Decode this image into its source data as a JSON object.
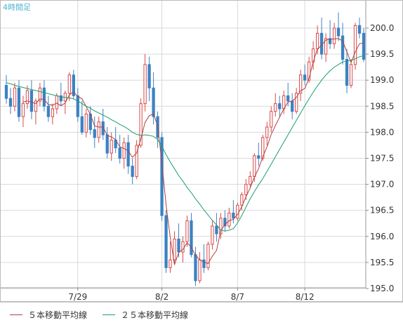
{
  "timeframe_label": "4時間足",
  "colors": {
    "up_candle": "#d94a4a",
    "down_candle": "#3b82c4",
    "ma5": "#b04040",
    "ma25": "#1a9e6e",
    "grid": "#d9d9d9"
  },
  "legend": {
    "ma5_label": "５本移動平均線",
    "ma25_label": "２５本移動平均線"
  },
  "chart_data": {
    "type": "candlestick",
    "title": "",
    "xlabel": "",
    "ylabel": "",
    "ylim": [
      194.85,
      200.5
    ],
    "y_ticks": [
      "195.0",
      "195.5",
      "196.0",
      "196.5",
      "197.0",
      "197.5",
      "198.0",
      "198.5",
      "199.0",
      "199.5",
      "200.0"
    ],
    "x_ticks": [
      {
        "index": 17,
        "label": "7/29"
      },
      {
        "index": 37,
        "label": "8/2"
      },
      {
        "index": 55,
        "label": "8/7"
      },
      {
        "index": 71,
        "label": "8/12"
      }
    ],
    "ohlc": [
      [
        198.9,
        199.1,
        198.55,
        198.65
      ],
      [
        198.65,
        198.85,
        198.35,
        198.5
      ],
      [
        198.5,
        198.95,
        198.4,
        198.85
      ],
      [
        198.85,
        199.0,
        198.2,
        198.3
      ],
      [
        198.3,
        198.7,
        198.1,
        198.55
      ],
      [
        198.55,
        198.9,
        198.45,
        198.8
      ],
      [
        198.8,
        199.0,
        198.25,
        198.4
      ],
      [
        198.4,
        198.65,
        198.15,
        198.6
      ],
      [
        198.6,
        198.95,
        198.5,
        198.85
      ],
      [
        198.85,
        199.0,
        198.4,
        198.5
      ],
      [
        198.5,
        198.7,
        198.2,
        198.3
      ],
      [
        198.3,
        198.55,
        198.15,
        198.45
      ],
      [
        198.45,
        198.75,
        198.35,
        198.7
      ],
      [
        198.7,
        198.95,
        198.5,
        198.6
      ],
      [
        198.6,
        198.8,
        198.35,
        198.75
      ],
      [
        198.75,
        199.15,
        198.6,
        199.1
      ],
      [
        199.1,
        199.2,
        198.65,
        198.7
      ],
      [
        198.7,
        198.85,
        198.2,
        198.3
      ],
      [
        198.3,
        198.6,
        197.95,
        198.0
      ],
      [
        198.0,
        198.45,
        197.9,
        198.35
      ],
      [
        198.35,
        198.5,
        197.95,
        198.05
      ],
      [
        198.05,
        198.3,
        197.7,
        197.9
      ],
      [
        197.9,
        198.3,
        197.8,
        198.2
      ],
      [
        198.2,
        198.45,
        197.85,
        197.95
      ],
      [
        197.95,
        198.1,
        197.5,
        197.6
      ],
      [
        197.6,
        198.0,
        197.45,
        197.85
      ],
      [
        197.85,
        198.1,
        197.6,
        197.7
      ],
      [
        197.7,
        197.95,
        197.4,
        197.5
      ],
      [
        197.5,
        197.9,
        197.3,
        197.8
      ],
      [
        197.8,
        197.95,
        197.2,
        197.35
      ],
      [
        197.35,
        197.5,
        197.0,
        197.15
      ],
      [
        197.15,
        197.85,
        197.1,
        197.75
      ],
      [
        197.75,
        198.65,
        197.7,
        198.55
      ],
      [
        198.55,
        199.5,
        198.4,
        199.3
      ],
      [
        199.3,
        199.45,
        198.6,
        198.85
      ],
      [
        198.85,
        199.15,
        198.15,
        198.3
      ],
      [
        198.3,
        198.4,
        197.7,
        197.9
      ],
      [
        197.9,
        198.0,
        196.3,
        196.4
      ],
      [
        196.4,
        196.5,
        195.3,
        195.4
      ],
      [
        195.4,
        195.9,
        195.3,
        195.55
      ],
      [
        195.55,
        196.1,
        195.45,
        195.95
      ],
      [
        195.95,
        196.25,
        195.6,
        195.7
      ],
      [
        195.7,
        196.0,
        195.5,
        195.9
      ],
      [
        195.9,
        196.4,
        195.8,
        196.3
      ],
      [
        196.3,
        196.45,
        195.6,
        195.65
      ],
      [
        195.65,
        195.8,
        195.05,
        195.15
      ],
      [
        195.15,
        195.7,
        195.1,
        195.55
      ],
      [
        195.55,
        195.85,
        195.3,
        195.4
      ],
      [
        195.4,
        195.9,
        195.35,
        195.85
      ],
      [
        195.85,
        196.3,
        195.75,
        196.2
      ],
      [
        196.2,
        196.45,
        195.9,
        196.05
      ],
      [
        196.05,
        196.45,
        195.95,
        196.35
      ],
      [
        196.35,
        196.5,
        196.1,
        196.2
      ],
      [
        196.2,
        196.55,
        196.15,
        196.45
      ],
      [
        196.45,
        196.7,
        196.25,
        196.35
      ],
      [
        196.35,
        196.65,
        196.3,
        196.6
      ],
      [
        196.6,
        196.85,
        196.5,
        196.8
      ],
      [
        196.8,
        197.1,
        196.7,
        197.0
      ],
      [
        197.0,
        197.25,
        196.95,
        197.15
      ],
      [
        197.15,
        197.6,
        197.05,
        197.55
      ],
      [
        197.55,
        197.8,
        197.35,
        197.5
      ],
      [
        197.5,
        197.95,
        197.45,
        197.9
      ],
      [
        197.9,
        198.2,
        197.75,
        198.1
      ],
      [
        198.1,
        198.5,
        198.0,
        198.4
      ],
      [
        198.4,
        198.75,
        198.3,
        198.55
      ],
      [
        198.55,
        198.7,
        198.3,
        198.45
      ],
      [
        198.45,
        198.8,
        198.35,
        198.7
      ],
      [
        198.7,
        198.95,
        198.5,
        198.6
      ],
      [
        198.6,
        198.75,
        198.25,
        198.4
      ],
      [
        198.4,
        198.85,
        198.35,
        198.75
      ],
      [
        198.75,
        199.2,
        198.6,
        199.1
      ],
      [
        199.1,
        199.3,
        198.9,
        199.0
      ],
      [
        199.0,
        199.45,
        198.95,
        199.35
      ],
      [
        199.35,
        199.75,
        199.2,
        199.6
      ],
      [
        199.6,
        200.05,
        199.5,
        199.9
      ],
      [
        199.9,
        200.2,
        199.4,
        199.5
      ],
      [
        199.5,
        199.9,
        199.35,
        199.8
      ],
      [
        199.8,
        200.15,
        199.6,
        199.7
      ],
      [
        199.7,
        200.1,
        199.6,
        200.0
      ],
      [
        200.0,
        200.3,
        199.75,
        199.85
      ],
      [
        199.85,
        200.1,
        199.3,
        199.4
      ],
      [
        199.4,
        199.6,
        198.75,
        198.9
      ],
      [
        198.9,
        199.4,
        198.85,
        199.3
      ],
      [
        199.3,
        200.1,
        199.2,
        200.05
      ],
      [
        200.05,
        200.2,
        199.8,
        199.9
      ],
      [
        199.9,
        200.0,
        199.35,
        199.4
      ]
    ],
    "series": [
      {
        "name": "５本移動平均線",
        "values": [
          null,
          null,
          null,
          null,
          198.58,
          198.6,
          198.58,
          198.55,
          198.64,
          198.63,
          198.53,
          198.52,
          198.56,
          198.51,
          198.56,
          198.72,
          198.77,
          198.69,
          198.64,
          198.49,
          198.34,
          198.12,
          198.1,
          198.1,
          197.94,
          197.91,
          197.86,
          197.72,
          197.69,
          197.64,
          197.52,
          197.6,
          197.87,
          198.19,
          198.32,
          198.35,
          198.12,
          197.41,
          196.6,
          195.98,
          195.46,
          195.69,
          195.75,
          195.88,
          195.79,
          195.64,
          195.55,
          195.51,
          195.48,
          195.62,
          195.73,
          196.11,
          196.23,
          196.3,
          196.33,
          196.42,
          196.57,
          196.76,
          196.93,
          197.14,
          197.3,
          197.53,
          197.72,
          197.96,
          198.13,
          198.29,
          198.45,
          198.58,
          198.6,
          198.67,
          198.8,
          198.84,
          199.04,
          199.35,
          199.6,
          199.67,
          199.77,
          199.79,
          199.79,
          199.8,
          199.75,
          199.54,
          199.34,
          199.54,
          199.7,
          199.71
        ]
      },
      {
        "name": "２５本移動平均線",
        "values": [
          198.95,
          198.93,
          198.9,
          198.88,
          198.86,
          198.84,
          198.82,
          198.8,
          198.78,
          198.76,
          198.74,
          198.72,
          198.7,
          198.68,
          198.67,
          198.66,
          198.64,
          198.6,
          198.55,
          198.5,
          198.46,
          198.41,
          198.37,
          198.33,
          198.29,
          198.24,
          198.2,
          198.15,
          198.11,
          198.06,
          198.0,
          197.96,
          197.94,
          197.95,
          197.94,
          197.92,
          197.86,
          197.73,
          197.57,
          197.43,
          197.3,
          197.17,
          197.06,
          196.94,
          196.84,
          196.72,
          196.62,
          196.51,
          196.41,
          196.31,
          196.22,
          196.13,
          196.1,
          196.12,
          196.15,
          196.26,
          196.4,
          196.56,
          196.72,
          196.86,
          196.99,
          197.11,
          197.25,
          197.39,
          197.53,
          197.67,
          197.81,
          197.95,
          198.09,
          198.23,
          198.37,
          198.51,
          198.64,
          198.77,
          198.89,
          199.0,
          199.1,
          199.18,
          199.25,
          199.3,
          199.35,
          199.37,
          199.38,
          199.41,
          199.45,
          199.47
        ]
      }
    ],
    "grid": true,
    "legend_position": "bottom"
  }
}
